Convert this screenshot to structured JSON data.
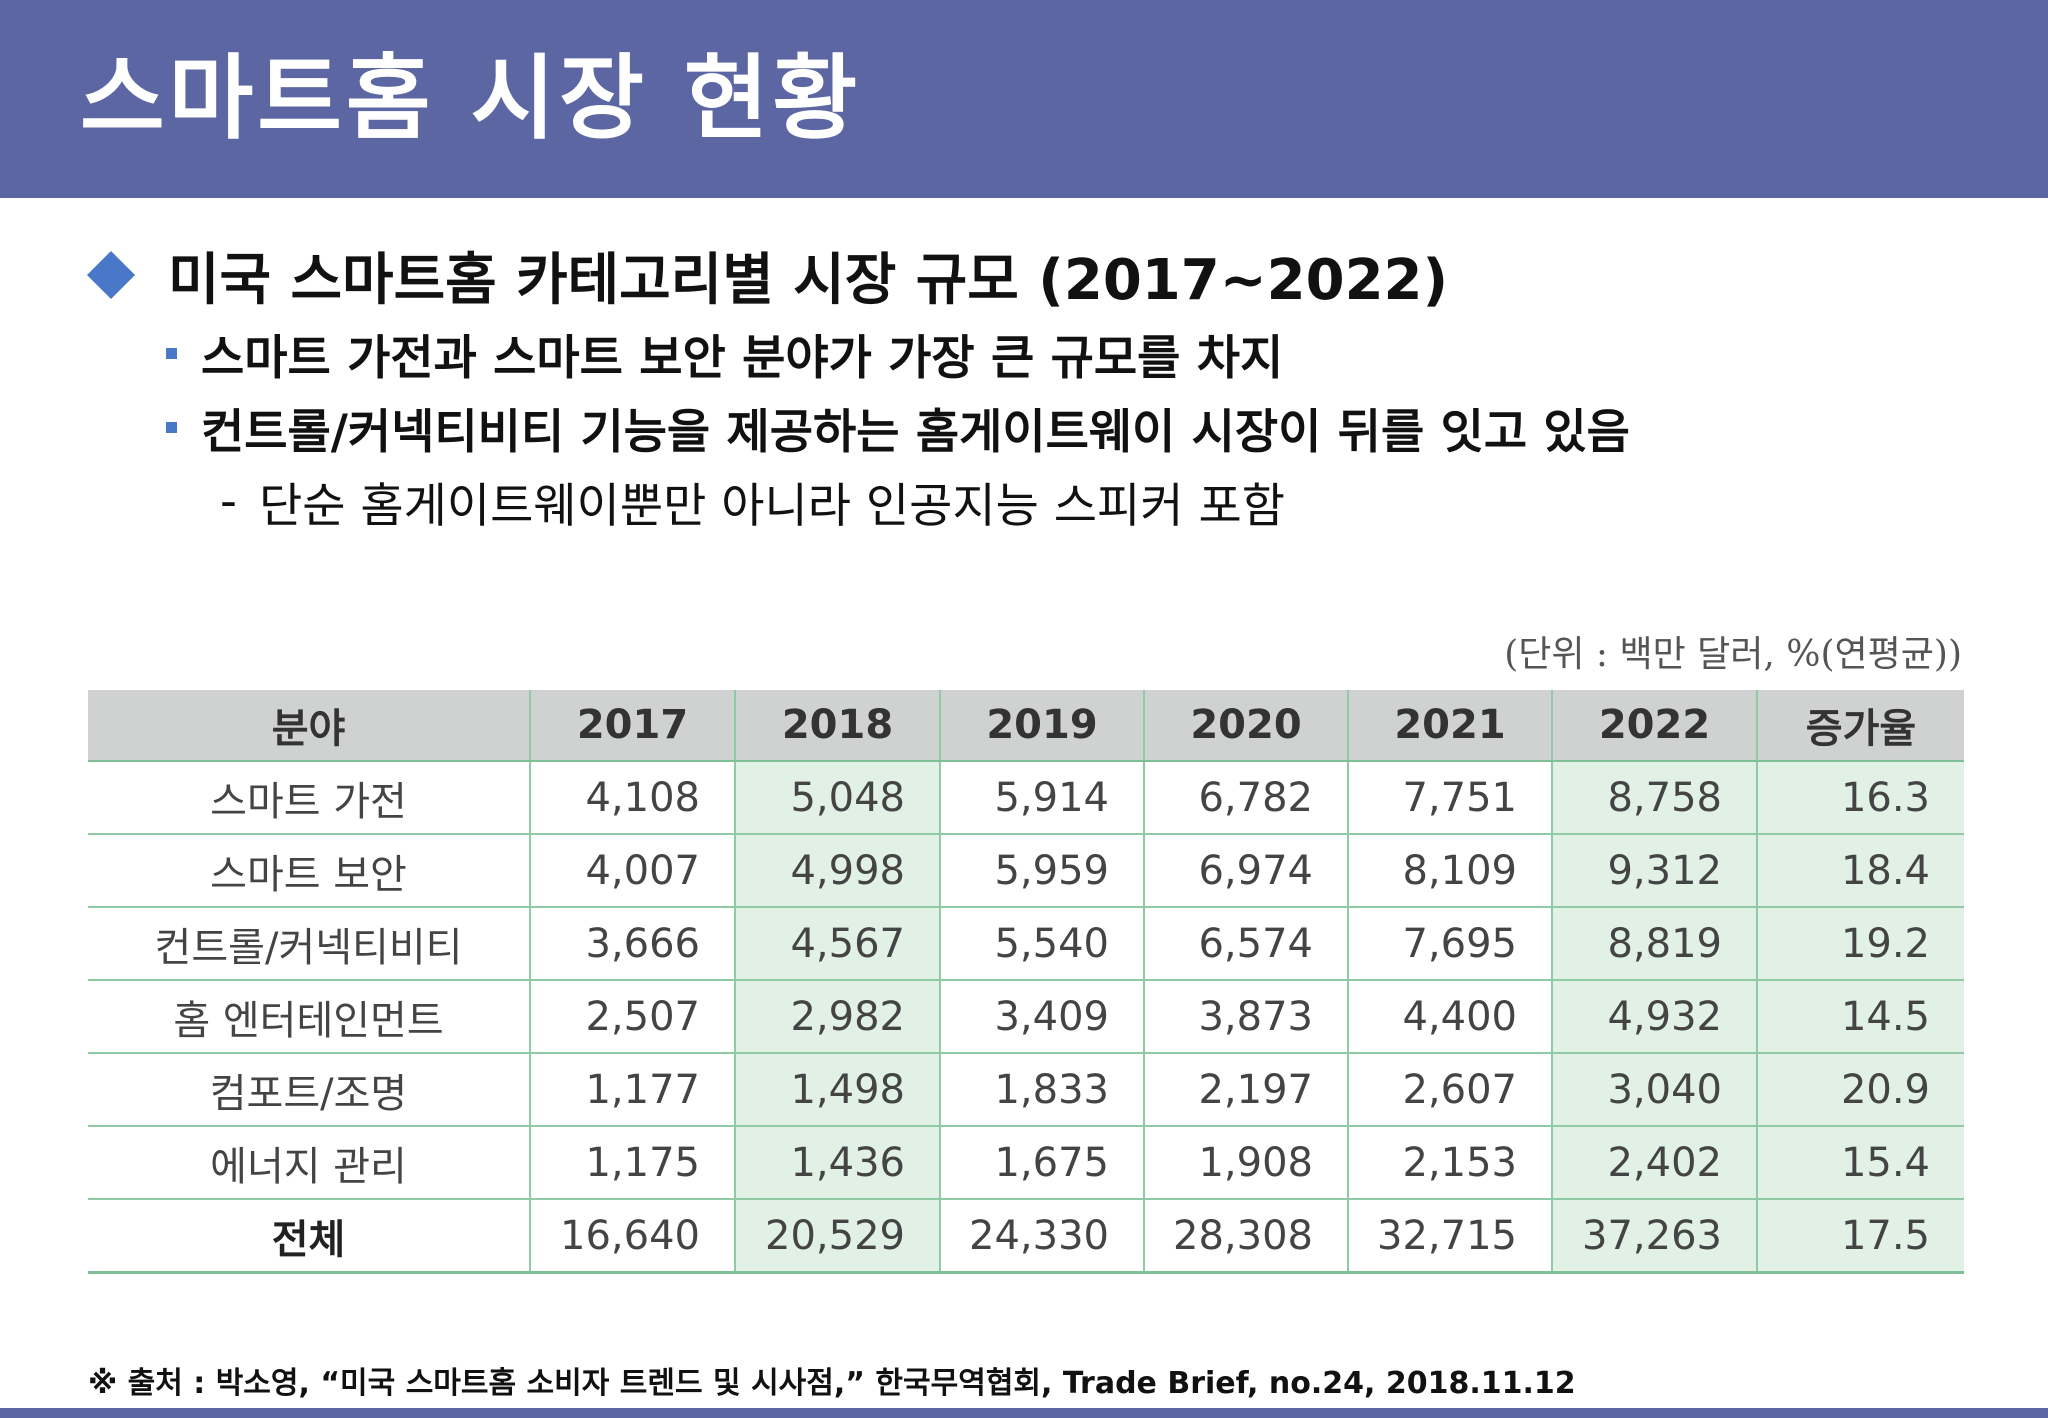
{
  "title": "스마트홈 시장 현황",
  "heading": "미국 스마트홈 카테고리별 시장 규모 (2017~2022)",
  "bullets": [
    "스마트 가전과 스마트 보안 분야가 가장 큰 규모를 차지",
    "컨트롤/커넥티비티 기능을 제공하는 홈게이트웨이 시장이 뒤를 잇고 있음"
  ],
  "sub_dash": "-",
  "sub_bullet": "단순 홈게이트웨이뿐만 아니라 인공지능 스피커 포함",
  "unit_note": "(단위 : 백만 달러, %(연평균))",
  "colors": {
    "title_bar": "#5b66a3",
    "bullet_accent": "#4a78c8",
    "header_bg": "#d0d2d2",
    "shade_bg": "#e2f1e6",
    "grid_line": "#8fc9a6"
  },
  "icons": {
    "heading_marker": "diamond-icon",
    "bullet_marker": "square-bullet-icon"
  },
  "chart_data": {
    "type": "table",
    "columns": [
      "분야",
      "2017",
      "2018",
      "2019",
      "2020",
      "2021",
      "2022",
      "증가율"
    ],
    "rows": [
      [
        "스마트 가전",
        "4,108",
        "5,048",
        "5,914",
        "6,782",
        "7,751",
        "8,758",
        "16.3"
      ],
      [
        "스마트 보안",
        "4,007",
        "4,998",
        "5,959",
        "6,974",
        "8,109",
        "9,312",
        "18.4"
      ],
      [
        "컨트롤/커넥티비티",
        "3,666",
        "4,567",
        "5,540",
        "6,574",
        "7,695",
        "8,819",
        "19.2"
      ],
      [
        "홈 엔터테인먼트",
        "2,507",
        "2,982",
        "3,409",
        "3,873",
        "4,400",
        "4,932",
        "14.5"
      ],
      [
        "컴포트/조명",
        "1,177",
        "1,498",
        "1,833",
        "2,197",
        "2,607",
        "3,040",
        "20.9"
      ],
      [
        "에너지 관리",
        "1,175",
        "1,436",
        "1,675",
        "1,908",
        "2,153",
        "2,402",
        "15.4"
      ],
      [
        "전체",
        "16,640",
        "20,529",
        "24,330",
        "28,308",
        "32,715",
        "37,263",
        "17.5"
      ]
    ],
    "shaded_columns": [
      "2018",
      "2022",
      "증가율"
    ]
  },
  "source": "※ 출처 : 박소영, “미국 스마트홈 소비자 트렌드 및 시사점,” 한국무역협회, Trade Brief, no.24, 2018.11.12"
}
